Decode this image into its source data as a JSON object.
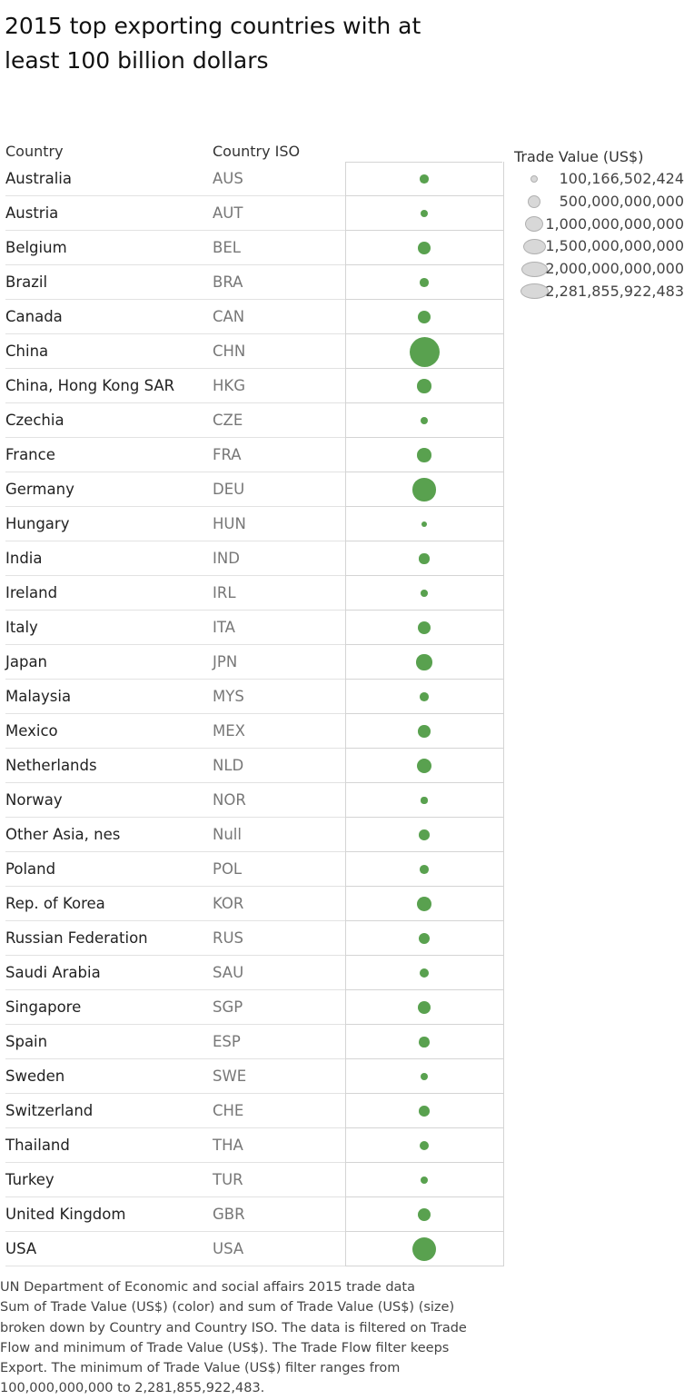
{
  "title": "2015 top exporting countries with at least 100 billion dollars",
  "columns": {
    "country": "Country",
    "iso": "Country ISO"
  },
  "legend": {
    "title": "Trade Value (US$)",
    "items": [
      {
        "label": "100,166,502,424",
        "value": 100166502424
      },
      {
        "label": "500,000,000,000",
        "value": 500000000000
      },
      {
        "label": "1,000,000,000,000",
        "value": 1000000000000
      },
      {
        "label": "1,500,000,000,000",
        "value": 1500000000000
      },
      {
        "label": "2,000,000,000,000",
        "value": 2000000000000
      },
      {
        "label": "2,281,855,922,483",
        "value": 2281855922483
      }
    ]
  },
  "colors": {
    "mark": "#59a14f",
    "legend_swatch": "#d8d8d8"
  },
  "chart_data": {
    "type": "table",
    "value_field": "Trade Value (US$)",
    "size_encoding": "sum of Trade Value (US$)",
    "rows": [
      {
        "country": "Australia",
        "iso": "AUS",
        "value": 188000000000
      },
      {
        "country": "Austria",
        "iso": "AUT",
        "value": 152000000000
      },
      {
        "country": "Belgium",
        "iso": "BEL",
        "value": 398000000000
      },
      {
        "country": "Brazil",
        "iso": "BRA",
        "value": 191000000000
      },
      {
        "country": "Canada",
        "iso": "CAN",
        "value": 408000000000
      },
      {
        "country": "China",
        "iso": "CHN",
        "value": 2281855922483
      },
      {
        "country": "China, Hong Kong SAR",
        "iso": "HKG",
        "value": 510000000000
      },
      {
        "country": "Czechia",
        "iso": "CZE",
        "value": 158000000000
      },
      {
        "country": "France",
        "iso": "FRA",
        "value": 506000000000
      },
      {
        "country": "Germany",
        "iso": "DEU",
        "value": 1329000000000
      },
      {
        "country": "Hungary",
        "iso": "HUN",
        "value": 100166502424
      },
      {
        "country": "India",
        "iso": "IND",
        "value": 267000000000
      },
      {
        "country": "Ireland",
        "iso": "IRL",
        "value": 124000000000
      },
      {
        "country": "Italy",
        "iso": "ITA",
        "value": 459000000000
      },
      {
        "country": "Japan",
        "iso": "JPN",
        "value": 625000000000
      },
      {
        "country": "Malaysia",
        "iso": "MYS",
        "value": 200000000000
      },
      {
        "country": "Mexico",
        "iso": "MEX",
        "value": 381000000000
      },
      {
        "country": "Netherlands",
        "iso": "NLD",
        "value": 567000000000
      },
      {
        "country": "Norway",
        "iso": "NOR",
        "value": 104000000000
      },
      {
        "country": "Other Asia, nes",
        "iso": "Null",
        "value": 285000000000
      },
      {
        "country": "Poland",
        "iso": "POL",
        "value": 198000000000
      },
      {
        "country": "Rep. of Korea",
        "iso": "KOR",
        "value": 527000000000
      },
      {
        "country": "Russian Federation",
        "iso": "RUS",
        "value": 340000000000
      },
      {
        "country": "Saudi Arabia",
        "iso": "SAU",
        "value": 203000000000
      },
      {
        "country": "Singapore",
        "iso": "SGP",
        "value": 410000000000
      },
      {
        "country": "Spain",
        "iso": "ESP",
        "value": 278000000000
      },
      {
        "country": "Sweden",
        "iso": "SWE",
        "value": 140000000000
      },
      {
        "country": "Switzerland",
        "iso": "CHE",
        "value": 290000000000
      },
      {
        "country": "Thailand",
        "iso": "THA",
        "value": 214000000000
      },
      {
        "country": "Turkey",
        "iso": "TUR",
        "value": 144000000000
      },
      {
        "country": "United Kingdom",
        "iso": "GBR",
        "value": 460000000000
      },
      {
        "country": "USA",
        "iso": "USA",
        "value": 1503000000000
      }
    ]
  },
  "caption": "UN Department of Economic and social affairs 2015 trade data\nSum of Trade Value (US$) (color) and sum of Trade Value (US$) (size)\nbroken down by Country and Country ISO.  The data is filtered on Trade\nFlow and minimum of Trade Value (US$). The Trade Flow filter keeps\nExport. The minimum of Trade Value (US$) filter ranges from\n100,000,000,000 to 2,281,855,922,483."
}
